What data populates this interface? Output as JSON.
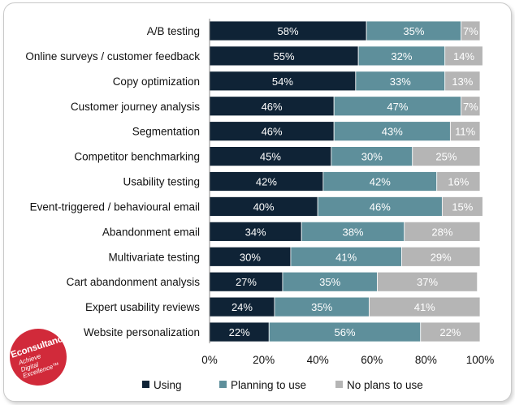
{
  "chart_data": {
    "type": "bar",
    "orientation": "horizontal",
    "stacked": true,
    "categories": [
      "A/B testing",
      "Online surveys / customer feedback",
      "Copy optimization",
      "Customer journey analysis",
      "Segmentation",
      "Competitor benchmarking",
      "Usability testing",
      "Event-triggered / behavioural email",
      "Abandonment email",
      "Multivariate testing",
      "Cart abandonment analysis",
      "Expert usability reviews",
      "Website personalization"
    ],
    "series": [
      {
        "name": "Using",
        "color": "#0f2336",
        "values": [
          58,
          55,
          54,
          46,
          46,
          45,
          42,
          40,
          34,
          30,
          27,
          24,
          22
        ]
      },
      {
        "name": "Planning to use",
        "color": "#5e8f9b",
        "values": [
          35,
          32,
          33,
          47,
          43,
          30,
          42,
          46,
          38,
          41,
          35,
          35,
          56
        ]
      },
      {
        "name": "No plans to use",
        "color": "#b5b5b5",
        "values": [
          7,
          14,
          13,
          7,
          11,
          25,
          16,
          15,
          28,
          29,
          37,
          41,
          22
        ]
      }
    ],
    "value_suffix": "%",
    "xlim": [
      0,
      100
    ],
    "x_ticks": [
      "0%",
      "20%",
      "40%",
      "60%",
      "80%",
      "100%"
    ],
    "legend_position": "bottom",
    "grid": false
  },
  "logo": {
    "brand": "Econsultancy",
    "tagline": [
      "Achieve",
      "Digital",
      "Excellence™"
    ],
    "color": "#d12a3a"
  }
}
